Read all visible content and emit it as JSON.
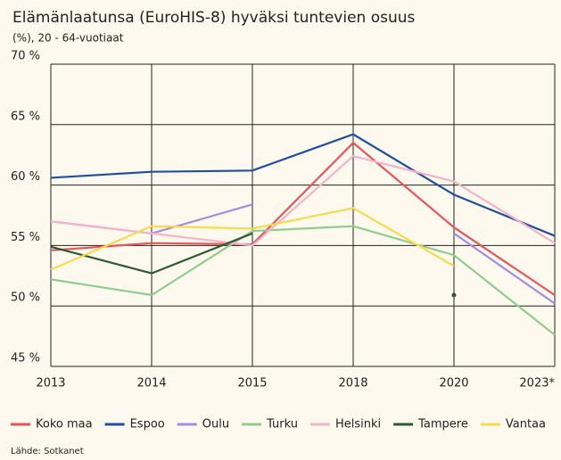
{
  "chart_data": {
    "type": "line",
    "title": "Elämänlaatunsa (EuroHIS-8) hyväksi tuntevien osuus",
    "subtitle": "(%), 20 - 64-vuotiaat",
    "source": "Lähde: Sotkanet",
    "categories": [
      "2013",
      "2014",
      "2015",
      "2018",
      "2020",
      "2023*"
    ],
    "ylim": [
      45,
      70
    ],
    "yticks": [
      {
        "value": 45,
        "label": "45 %"
      },
      {
        "value": 50,
        "label": "50 %"
      },
      {
        "value": 55,
        "label": "55 %"
      },
      {
        "value": 60,
        "label": "60 %"
      },
      {
        "value": 65,
        "label": "65 %"
      },
      {
        "value": 70,
        "label": "70 %"
      }
    ],
    "grid": true,
    "legend": "bottom",
    "series": [
      {
        "name": "Koko maa",
        "color": "#e5555a",
        "values": [
          54.6,
          55.2,
          55.1,
          63.5,
          56.5,
          50.9
        ]
      },
      {
        "name": "Espoo",
        "color": "#1f4ea3",
        "values": [
          60.6,
          61.1,
          61.2,
          64.2,
          59.2,
          55.8
        ]
      },
      {
        "name": "Oulu",
        "color": "#a58be3",
        "values": [
          57.0,
          56.0,
          58.4,
          null,
          56.0,
          50.2
        ]
      },
      {
        "name": "Turku",
        "color": "#8fce8a",
        "values": [
          52.2,
          50.9,
          56.2,
          56.6,
          54.2,
          47.6
        ]
      },
      {
        "name": "Helsinki",
        "color": "#f6b2c9",
        "values": [
          57.0,
          56.0,
          55.0,
          62.4,
          60.3,
          55.2
        ]
      },
      {
        "name": "Tampere",
        "color": "#2b5a35",
        "values": [
          54.9,
          52.7,
          56.0,
          null,
          50.9,
          null
        ]
      },
      {
        "name": "Vantaa",
        "color": "#f8da4a",
        "values": [
          53.0,
          56.6,
          56.4,
          58.1,
          53.3,
          null
        ]
      }
    ]
  }
}
